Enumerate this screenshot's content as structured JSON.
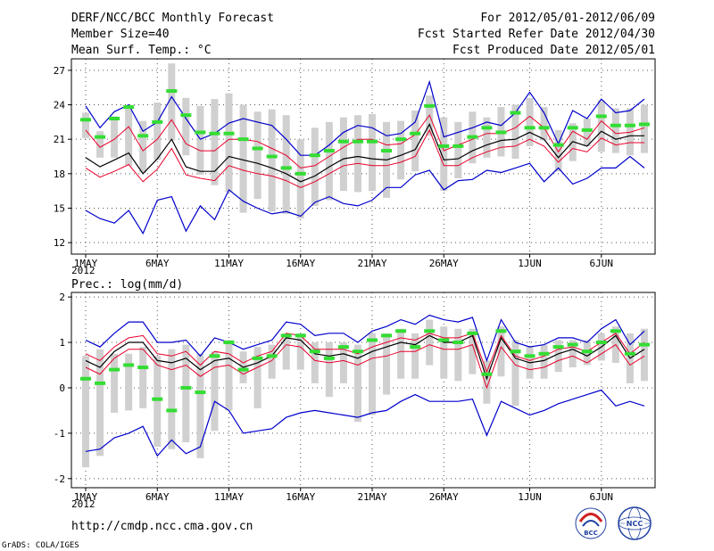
{
  "header": {
    "title": "DERF/NCC/BCC Monthly Forecast",
    "member_size": "Member Size=40",
    "variable": "Mean Surf. Temp.: °C",
    "period": "For 2012/05/01-2012/06/09",
    "refer_date": "Fcst Started Refer Date 2012/04/30",
    "produced_date": "Fcst Produced Date 2012/05/01"
  },
  "footer": {
    "url": "http://cmdp.ncc.cma.gov.cn",
    "credit": "GrADS: COLA/IGES",
    "logo_bcc": "BCC",
    "logo_ncc": "NCC"
  },
  "colors": {
    "box": "#d0d0d0",
    "median": "#33dd33",
    "mean": "#000000",
    "conf": "#e8002a",
    "envelope": "#0000cc",
    "grid": "#555555"
  },
  "chart_data": [
    {
      "type": "line",
      "title": "Mean Surf. Temp.: °C",
      "ylabel": "°C",
      "ylim": [
        11,
        28
      ],
      "yticks": [
        12,
        15,
        18,
        21,
        24,
        27
      ],
      "days": 40,
      "xtick_days": [
        1,
        6,
        11,
        16,
        21,
        26,
        32,
        37
      ],
      "xtick_labels": [
        "1MAY",
        "6MAY",
        "11MAY",
        "16MAY",
        "21MAY",
        "26MAY",
        "1JUN",
        "6JUN"
      ],
      "year_label": "2012",
      "max": [
        23.9,
        22.0,
        23.4,
        24.0,
        21.7,
        22.5,
        24.7,
        22.8,
        21.0,
        21.5,
        22.4,
        22.8,
        22.5,
        22.2,
        21.0,
        19.6,
        19.6,
        20.5,
        21.6,
        22.2,
        22.0,
        21.3,
        21.5,
        22.5,
        26.0,
        21.2,
        21.6,
        22.0,
        22.5,
        22.2,
        23.3,
        25.1,
        23.3,
        20.6,
        23.5,
        22.8,
        24.5,
        23.3,
        23.5,
        24.5
      ],
      "upper": [
        21.8,
        20.3,
        21.0,
        22.1,
        20.0,
        21.0,
        22.7,
        20.6,
        20.0,
        20.0,
        21.0,
        21.0,
        20.8,
        20.2,
        19.6,
        18.5,
        18.7,
        19.5,
        20.3,
        21.0,
        21.0,
        20.5,
        20.6,
        21.4,
        23.1,
        20.0,
        20.5,
        21.0,
        21.5,
        21.5,
        22.0,
        23.0,
        22.0,
        19.9,
        21.7,
        21.0,
        22.6,
        21.5,
        21.6,
        22.0
      ],
      "mean": [
        19.4,
        18.6,
        19.2,
        19.8,
        18.0,
        19.3,
        21.0,
        18.6,
        18.2,
        18.2,
        19.5,
        19.2,
        18.9,
        18.5,
        18.0,
        17.3,
        17.8,
        18.6,
        19.3,
        19.5,
        19.3,
        19.2,
        19.6,
        20.1,
        22.3,
        19.2,
        19.3,
        20.0,
        20.5,
        20.9,
        21.0,
        21.6,
        21.0,
        19.4,
        20.8,
        20.4,
        21.7,
        21.0,
        21.3,
        21.3
      ],
      "lower": [
        18.5,
        17.7,
        18.2,
        18.8,
        17.3,
        18.4,
        20.2,
        17.9,
        17.6,
        17.4,
        18.7,
        18.3,
        18.0,
        17.8,
        17.4,
        16.8,
        17.3,
        18.0,
        18.7,
        18.9,
        18.7,
        18.7,
        19.0,
        19.5,
        21.8,
        18.7,
        18.7,
        19.4,
        19.9,
        20.3,
        20.4,
        21.0,
        20.4,
        19.0,
        20.2,
        19.9,
        21.1,
        20.5,
        20.7,
        20.7
      ],
      "min": [
        14.8,
        14.1,
        13.7,
        14.8,
        12.8,
        15.7,
        16.0,
        13.0,
        15.2,
        14.0,
        16.6,
        15.6,
        15.0,
        14.5,
        14.7,
        14.3,
        15.5,
        16.0,
        15.4,
        15.2,
        15.7,
        16.8,
        16.8,
        17.9,
        18.3,
        16.6,
        17.4,
        17.5,
        18.3,
        18.1,
        18.5,
        18.9,
        17.3,
        18.5,
        17.1,
        17.6,
        18.5,
        18.5,
        19.5,
        18.5
      ],
      "box_top": [
        23.3,
        21.7,
        23.0,
        23.9,
        22.6,
        24.2,
        27.6,
        24.6,
        23.9,
        24.5,
        25.0,
        24.0,
        23.4,
        23.6,
        23.1,
        21.0,
        22.0,
        22.5,
        22.9,
        23.1,
        23.2,
        22.5,
        22.6,
        23.5,
        24.8,
        22.9,
        22.5,
        23.4,
        22.9,
        23.8,
        24.0,
        24.6,
        23.8,
        21.8,
        22.4,
        22.8,
        24.4,
        23.7,
        23.7,
        24.0
      ],
      "box_bot": [
        21.1,
        19.4,
        19.4,
        18.7,
        18.1,
        19.2,
        20.9,
        19.6,
        17.9,
        17.0,
        16.4,
        14.6,
        15.8,
        14.7,
        14.5,
        14.1,
        15.2,
        15.7,
        16.5,
        16.4,
        16.5,
        15.9,
        17.5,
        18.2,
        21.3,
        16.5,
        17.6,
        18.9,
        19.4,
        19.5,
        19.3,
        20.4,
        20.9,
        18.2,
        19.1,
        20.4,
        19.9,
        19.8,
        19.6,
        19.8
      ],
      "median": [
        22.7,
        21.2,
        22.8,
        23.8,
        21.3,
        22.5,
        25.2,
        23.1,
        21.6,
        21.5,
        21.5,
        21.0,
        20.2,
        19.5,
        18.5,
        18.0,
        19.6,
        20.0,
        20.8,
        20.8,
        20.8,
        20.0,
        21.0,
        21.5,
        23.9,
        20.4,
        20.4,
        21.2,
        22.0,
        21.6,
        23.3,
        22.0,
        22.0,
        20.5,
        22.0,
        21.8,
        23.0,
        22.2,
        22.2,
        22.3
      ]
    },
    {
      "type": "line",
      "title": "Prec.: log(mm/d)",
      "ylabel": "log(mm/d)",
      "ylim": [
        -2.2,
        2.1
      ],
      "yticks": [
        -2,
        -1,
        0,
        1,
        2
      ],
      "days": 40,
      "xtick_days": [
        1,
        6,
        11,
        16,
        21,
        26,
        32,
        37
      ],
      "xtick_labels": [
        "1MAY",
        "6MAY",
        "11MAY",
        "16MAY",
        "21MAY",
        "26MAY",
        "1JUN",
        "6JUN"
      ],
      "year_label": "2012",
      "max": [
        1.05,
        0.9,
        1.2,
        1.45,
        1.45,
        1.0,
        1.0,
        1.05,
        0.7,
        1.1,
        1.0,
        0.85,
        0.95,
        1.05,
        1.45,
        1.4,
        1.15,
        1.2,
        1.2,
        1.0,
        1.25,
        1.35,
        1.5,
        1.4,
        1.6,
        1.5,
        1.45,
        1.55,
        0.6,
        1.5,
        1.0,
        0.9,
        0.95,
        1.1,
        1.1,
        1.0,
        1.3,
        1.5,
        0.95,
        1.25
      ],
      "upper": [
        0.75,
        0.6,
        0.9,
        1.1,
        1.15,
        0.75,
        0.7,
        0.8,
        0.5,
        0.8,
        0.75,
        0.55,
        0.7,
        0.8,
        1.2,
        1.15,
        0.85,
        0.85,
        0.85,
        0.75,
        0.9,
        1.0,
        1.1,
        1.05,
        1.2,
        1.1,
        1.1,
        1.2,
        0.35,
        1.15,
        0.7,
        0.6,
        0.7,
        0.85,
        0.9,
        0.8,
        1.0,
        1.2,
        0.75,
        1.0
      ],
      "mean": [
        0.6,
        0.45,
        0.8,
        1.0,
        1.0,
        0.6,
        0.55,
        0.65,
        0.4,
        0.6,
        0.65,
        0.45,
        0.55,
        0.7,
        1.1,
        1.05,
        0.75,
        0.7,
        0.75,
        0.65,
        0.8,
        0.9,
        1.0,
        0.95,
        1.15,
        1.0,
        1.0,
        1.15,
        0.2,
        1.1,
        0.65,
        0.55,
        0.6,
        0.75,
        0.85,
        0.7,
        0.9,
        1.15,
        0.65,
        0.85
      ],
      "lower": [
        0.45,
        0.3,
        0.65,
        0.85,
        0.85,
        0.5,
        0.4,
        0.5,
        0.25,
        0.45,
        0.5,
        0.3,
        0.45,
        0.6,
        0.95,
        0.9,
        0.6,
        0.55,
        0.6,
        0.5,
        0.65,
        0.7,
        0.8,
        0.8,
        0.95,
        0.85,
        0.85,
        0.95,
        0.0,
        0.9,
        0.5,
        0.4,
        0.45,
        0.6,
        0.7,
        0.55,
        0.75,
        0.95,
        0.5,
        0.7
      ],
      "min": [
        -1.4,
        -1.35,
        -1.1,
        -1.0,
        -0.85,
        -1.5,
        -1.15,
        -1.45,
        -1.3,
        -0.3,
        -0.5,
        -1.0,
        -0.95,
        -0.9,
        -0.65,
        -0.55,
        -0.5,
        -0.55,
        -0.6,
        -0.65,
        -0.55,
        -0.5,
        -0.3,
        -0.15,
        -0.3,
        -0.3,
        -0.3,
        -0.25,
        -1.05,
        -0.3,
        -0.45,
        -0.6,
        -0.5,
        -0.35,
        -0.25,
        -0.15,
        -0.05,
        -0.4,
        -0.3,
        -0.4
      ],
      "box_top": [
        0.7,
        0.85,
        0.75,
        0.75,
        0.9,
        0.7,
        0.85,
        0.95,
        0.75,
        0.8,
        1.05,
        0.8,
        0.9,
        0.95,
        1.2,
        1.2,
        1.0,
        1.0,
        1.0,
        0.95,
        1.2,
        1.2,
        1.3,
        1.2,
        1.5,
        1.35,
        1.3,
        1.3,
        0.6,
        1.35,
        1.05,
        0.9,
        0.95,
        1.05,
        1.05,
        1.05,
        1.2,
        1.35,
        1.2,
        1.3
      ],
      "box_bot": [
        -1.75,
        -1.5,
        -0.55,
        -0.5,
        -0.45,
        -1.3,
        -1.35,
        -1.2,
        -1.55,
        -0.95,
        -0.5,
        0.1,
        -0.45,
        0.2,
        0.4,
        0.4,
        0.1,
        -0.2,
        0.1,
        -0.75,
        -0.6,
        -0.15,
        0.2,
        0.2,
        0.5,
        0.2,
        0.15,
        0.3,
        -0.35,
        0.25,
        -0.4,
        0.2,
        0.2,
        0.35,
        0.45,
        0.5,
        0.6,
        0.55,
        0.1,
        0.15
      ],
      "median": [
        0.2,
        0.1,
        0.4,
        0.5,
        0.45,
        -0.25,
        -0.5,
        0.0,
        -0.1,
        0.7,
        1.0,
        0.4,
        0.65,
        0.7,
        1.15,
        1.15,
        0.8,
        0.65,
        0.9,
        0.8,
        1.05,
        1.15,
        1.25,
        0.9,
        1.25,
        1.05,
        1.0,
        1.2,
        0.3,
        1.25,
        0.8,
        0.7,
        0.75,
        0.9,
        0.95,
        0.8,
        1.0,
        1.25,
        0.75,
        0.95
      ]
    }
  ]
}
